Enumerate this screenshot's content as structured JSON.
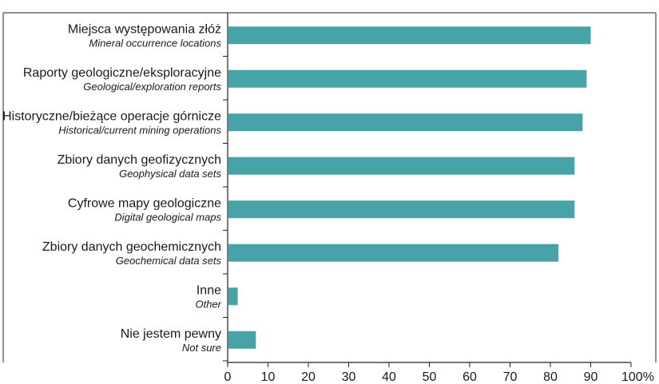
{
  "chart_data": {
    "type": "bar",
    "orientation": "horizontal",
    "categories": [
      {
        "label": "Miejsca występowania złóż",
        "sublabel": "Mineral occurrence locations"
      },
      {
        "label": "Raporty geologiczne/eksploracyjne",
        "sublabel": "Geological/exploration reports"
      },
      {
        "label": "Historyczne/bieżące operacje górnicze",
        "sublabel": "Historical/current mining operations"
      },
      {
        "label": "Zbiory danych geofizycznych",
        "sublabel": "Geophysical data sets"
      },
      {
        "label": "Cyfrowe mapy geologiczne",
        "sublabel": "Digital geological maps"
      },
      {
        "label": "Zbiory danych geochemicznych",
        "sublabel": "Geochemical data sets"
      },
      {
        "label": "Inne",
        "sublabel": "Other"
      },
      {
        "label": "Nie jestem pewny",
        "sublabel": "Not sure"
      }
    ],
    "values": [
      90,
      89,
      88,
      86,
      86,
      82,
      2.5,
      7
    ],
    "xlim": [
      0,
      100
    ],
    "xticks": [
      "0",
      "10",
      "20",
      "30",
      "40",
      "50",
      "60",
      "70",
      "80",
      "90",
      "100%"
    ],
    "bar_color": "#46a3a8",
    "grid": false
  }
}
